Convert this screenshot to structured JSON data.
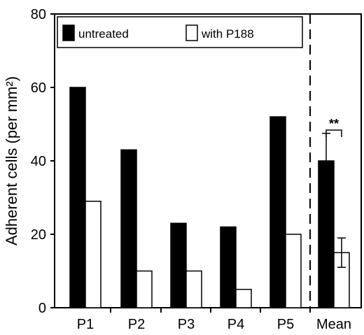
{
  "chart_data": {
    "type": "bar",
    "title": "",
    "ylabel": "Adherent cells (per mm²)",
    "xlabel": "",
    "ylim": [
      0,
      80
    ],
    "yticks": [
      0,
      20,
      40,
      60,
      80
    ],
    "categories": [
      "P1",
      "P2",
      "P3",
      "P4",
      "P5",
      "Mean"
    ],
    "series": [
      {
        "name": "untreated",
        "color": "#000000",
        "values": [
          60,
          43,
          23,
          22,
          52,
          40
        ],
        "errors": [
          null,
          null,
          null,
          null,
          null,
          7.5
        ]
      },
      {
        "name": "with P188",
        "color": "#ffffff",
        "values": [
          29,
          10,
          10,
          5,
          20,
          15
        ],
        "errors": [
          null,
          null,
          null,
          null,
          null,
          4
        ]
      }
    ],
    "annotations": [
      {
        "text": "**",
        "category": "Mean"
      }
    ],
    "legend": "top",
    "grid": false,
    "separator": "dashed line before Mean"
  }
}
